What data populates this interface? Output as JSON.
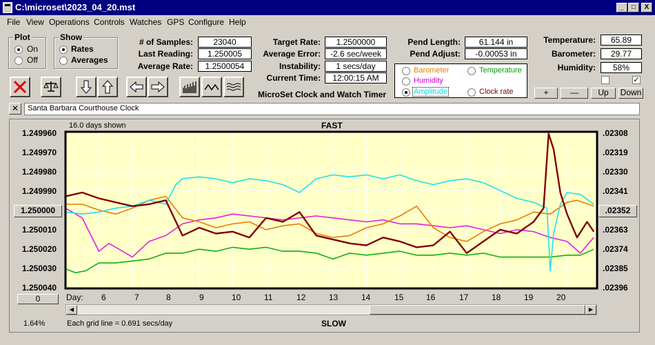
{
  "window": {
    "title": "C:\\microset\\2023_04_20.mst",
    "controls": [
      "_",
      "□",
      "X"
    ]
  },
  "menu": [
    "File",
    "View",
    "Operations",
    "Controls",
    "Watches",
    "GPS",
    "Configure",
    "Help"
  ],
  "plot_group": {
    "title": "Plot",
    "on_label": "On",
    "off_label": "Off",
    "selected": "On"
  },
  "show_group": {
    "title": "Show",
    "rates_label": "Rates",
    "averages_label": "Averages",
    "selected": "Rates"
  },
  "samples": {
    "num_samples_label": "# of Samples:",
    "num_samples": "23040",
    "last_reading_label": "Last Reading:",
    "last_reading": "1.250005",
    "average_rate_label": "Average Rate:",
    "average_rate": "1.2500054"
  },
  "target": {
    "target_rate_label": "Target Rate:",
    "target_rate": "1.2500000",
    "average_error_label": "Average Error:",
    "average_error": "-2.6 sec/week",
    "instability_label": "Instability:",
    "instability": "1 secs/day",
    "current_time_label": "Current Time:",
    "current_time": "12:00:15 AM"
  },
  "app_name": "MicroSet Clock and Watch Timer",
  "pendulum": {
    "length_label": "Pend Length:",
    "length": "61.144 in",
    "adjust_label": "Pend Adjust:",
    "adjust": "-0.00053 in"
  },
  "sensor_select": {
    "options": [
      {
        "label": "Barometer",
        "color": "#e67e00",
        "selected": false
      },
      {
        "label": "Temperature",
        "color": "#00a000",
        "selected": false
      },
      {
        "label": "Humidity",
        "color": "#d000d0",
        "selected": false
      },
      {
        "label": "Amplitude",
        "color": "#00d8e8",
        "selected": true
      },
      {
        "label": "Clock rate",
        "color": "#800000",
        "selected": false
      }
    ]
  },
  "environment": {
    "temperature_label": "Temperature:",
    "temperature": "65.89",
    "barometer_label": "Barometer:",
    "barometer": "29.77",
    "humidity_label": "Humidity:",
    "humidity": "58%",
    "check1": false,
    "check2": true
  },
  "scale_buttons": {
    "plus": "+",
    "minus": "—",
    "up": "Up",
    "down": "Down"
  },
  "toolbar_icons": [
    "stop-icon",
    "balance-icon",
    "arrow-down-icon",
    "arrow-up-icon",
    "arrow-left-icon",
    "arrow-right-icon",
    "histogram-icon",
    "wave-icon",
    "ripple-icon"
  ],
  "clock_name": "Santa Barbara Courthouse Clock",
  "close_glyph": "✕",
  "plot": {
    "days_shown": "16.0 days shown",
    "fast_label": "FAST",
    "slow_label": "SLOW",
    "left_ticks": [
      "1.249960",
      "1.249970",
      "1.249980",
      "1.249990",
      "1.250000",
      "1.250010",
      "1.250020",
      "1.250030",
      "1.250040"
    ],
    "right_ticks": [
      ".02308",
      ".02319",
      ".02330",
      ".02341",
      ".02352",
      ".02363",
      ".02374",
      ".02385",
      ".02396"
    ],
    "x_label": "Day:",
    "x_ticks": [
      "6",
      "7",
      "8",
      "9",
      "10",
      "11",
      "12",
      "13",
      "14",
      "15",
      "16",
      "17",
      "18",
      "19",
      "20"
    ],
    "zero_button": "0",
    "percent": "1.64%",
    "grid_note": "Each grid line = 0.691 secs/day",
    "background": "#ffffc8",
    "series_colors": {
      "clock_rate": "#800000",
      "barometer": "#e67e00",
      "amplitude": "#20e0f0",
      "humidity": "#e020e0",
      "temperature": "#10b010"
    }
  },
  "chart_data": {
    "type": "line",
    "title": "",
    "xlabel": "Day:",
    "ylabel": "",
    "xlim": [
      5,
      20.9
    ],
    "ylim_left": [
      1.24996,
      1.25004
    ],
    "ylim_right": [
      0.02308,
      0.02396
    ],
    "series": [
      {
        "name": "Clock rate",
        "color": "#800000",
        "x": [
          5,
          5.5,
          6,
          6.5,
          7,
          7.5,
          8,
          8.5,
          9,
          9.5,
          10,
          10.5,
          11,
          11.5,
          12,
          12.5,
          13,
          13.5,
          14,
          14.5,
          15,
          15.5,
          16,
          16.5,
          17,
          17.5,
          18,
          18.5,
          19,
          19.3,
          19.45,
          19.6,
          19.8,
          20,
          20.3,
          20.6,
          20.8
        ],
        "y": [
          1.249993,
          1.249991,
          1.249994,
          1.249996,
          1.249998,
          1.249997,
          1.249995,
          1.250013,
          1.250009,
          1.250012,
          1.250011,
          1.250014,
          1.250004,
          1.250006,
          1.250001,
          1.250013,
          1.250015,
          1.250017,
          1.250018,
          1.250014,
          1.250016,
          1.250019,
          1.250018,
          1.250011,
          1.250022,
          1.250016,
          1.25001,
          1.250012,
          1.250006,
          1.249999,
          1.249961,
          1.249969,
          1.249991,
          1.250002,
          1.250014,
          1.250006,
          1.250011
        ]
      },
      {
        "name": "Barometer",
        "color": "#e67e00",
        "x": [
          5,
          5.5,
          6,
          6.5,
          7,
          7.5,
          8,
          8.5,
          9,
          9.5,
          10,
          10.5,
          11,
          11.5,
          12,
          12.5,
          13,
          13.5,
          14,
          14.5,
          15,
          15.5,
          16,
          16.5,
          17,
          17.5,
          18,
          18.5,
          19,
          19.5,
          20,
          20.3,
          20.8
        ],
        "y": [
          1.249997,
          1.249997,
          1.25,
          1.250002,
          1.249999,
          1.249995,
          1.249993,
          1.250004,
          1.250006,
          1.250009,
          1.250007,
          1.250006,
          1.25001,
          1.250008,
          1.250007,
          1.250012,
          1.250014,
          1.250013,
          1.250009,
          1.250007,
          1.250003,
          1.249998,
          1.250009,
          1.250014,
          1.250016,
          1.250011,
          1.250007,
          1.250005,
          1.250001,
          1.250002,
          1.249996,
          1.249995,
          1.249998
        ]
      },
      {
        "name": "Amplitude",
        "color": "#20e0f0",
        "x": [
          5,
          5.5,
          6,
          6.5,
          7,
          7.5,
          8,
          8.3,
          8.5,
          9,
          9.5,
          10,
          10.5,
          11,
          11.5,
          12,
          12.5,
          13,
          13.5,
          14,
          14.5,
          15,
          15.5,
          16,
          16.5,
          17,
          17.5,
          18,
          18.5,
          19,
          19.4,
          19.5,
          19.6,
          19.8,
          20,
          20.4,
          20.8
        ],
        "y": [
          1.250001,
          1.250002,
          1.250001,
          1.249999,
          1.249998,
          1.249995,
          1.249997,
          1.249987,
          1.249984,
          1.249983,
          1.249984,
          1.249986,
          1.249984,
          1.249985,
          1.249987,
          1.249991,
          1.249984,
          1.249982,
          1.249983,
          1.249982,
          1.249984,
          1.249982,
          1.249985,
          1.249987,
          1.249985,
          1.249984,
          1.249986,
          1.24999,
          1.249994,
          1.249996,
          1.249999,
          1.250031,
          1.250012,
          1.249997,
          1.249991,
          1.249992,
          1.249997
        ]
      },
      {
        "name": "Humidity",
        "color": "#e020e0",
        "x": [
          5,
          5.5,
          6,
          6.3,
          6.6,
          7,
          7.5,
          8,
          8.5,
          9,
          9.5,
          10,
          10.5,
          11,
          11.5,
          12,
          12.5,
          13,
          13.5,
          14,
          14.5,
          15,
          15.5,
          16,
          16.5,
          17,
          17.5,
          18,
          18.5,
          19,
          19.5,
          20,
          20.4,
          20.8
        ],
        "y": [
          1.249999,
          1.250004,
          1.250021,
          1.250017,
          1.25002,
          1.250024,
          1.250016,
          1.250013,
          1.250007,
          1.250005,
          1.250004,
          1.250002,
          1.250003,
          1.250004,
          1.250005,
          1.250004,
          1.250003,
          1.250004,
          1.250005,
          1.250006,
          1.250005,
          1.250007,
          1.250007,
          1.250008,
          1.250009,
          1.250008,
          1.25001,
          1.250012,
          1.25001,
          1.250011,
          1.250014,
          1.250016,
          1.250022,
          1.250014
        ]
      },
      {
        "name": "Temperature",
        "color": "#10b010",
        "x": [
          5,
          5.3,
          5.6,
          6,
          6.5,
          7,
          7.5,
          8,
          8.5,
          9,
          9.5,
          10,
          10.5,
          11,
          11.5,
          12,
          12.5,
          13,
          13.5,
          14,
          14.5,
          15,
          15.5,
          16,
          16.5,
          17,
          17.5,
          18,
          18.5,
          19,
          19.5,
          20,
          20.4,
          20.8
        ],
        "y": [
          1.25003,
          1.250032,
          1.250031,
          1.250027,
          1.250027,
          1.250026,
          1.250025,
          1.250022,
          1.250022,
          1.25002,
          1.250021,
          1.250019,
          1.25002,
          1.250019,
          1.250021,
          1.250021,
          1.250022,
          1.250025,
          1.250022,
          1.250023,
          1.250022,
          1.250021,
          1.250023,
          1.250023,
          1.250022,
          1.250023,
          1.250022,
          1.250024,
          1.250024,
          1.250024,
          1.250024,
          1.250023,
          1.250023,
          1.25002
        ]
      }
    ]
  }
}
